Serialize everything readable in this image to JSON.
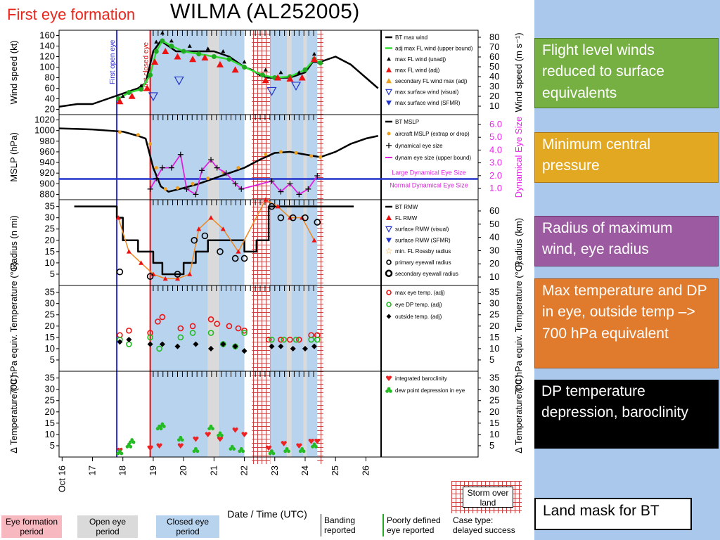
{
  "slide_title": "First eye formation",
  "plot_title": "WILMA (AL252005)",
  "side_boxes": [
    {
      "id": "fl-winds",
      "text": "Flight level winds reduced to surface equivalents",
      "color": "#76b043"
    },
    {
      "id": "min-pressure",
      "text": "Minimum central pressure",
      "color": "#e3a822"
    },
    {
      "id": "rmw",
      "text": "Radius of maximum wind, eye radius",
      "color": "#9c5aa0"
    },
    {
      "id": "max-temp",
      "text": "Max temperature and DP in eye, outside temp –> 700 hPa equivalent",
      "color": "#e07a2c"
    },
    {
      "id": "dp-depression",
      "text": "DP temperature depression, baroclinity",
      "color": "#000000"
    },
    {
      "id": "land-mask",
      "text": "Land mask for BT",
      "color": "#ffffff"
    }
  ],
  "colors": {
    "sidebar_blue": "#a9c8ec",
    "closed_eye": "#b8d3ee",
    "open_eye": "#dadada",
    "eye_formation": "#f7b8c0",
    "eye_line_open": "#2a2ad0",
    "eye_line_closed": "#e01010",
    "land_hatch": "#d04040"
  },
  "chart_data": {
    "type": "line",
    "x_axis": {
      "label": "Date / Time (UTC)",
      "ticks": [
        "Oct 16",
        "17",
        "18",
        "19",
        "20",
        "21",
        "22",
        "23",
        "24",
        "25",
        "26"
      ],
      "range_days": [
        15.9,
        26.5
      ]
    },
    "annotations": {
      "first_open_eye": {
        "label": "First open eye",
        "day": 17.8
      },
      "first_closed_eye": {
        "label": "First closed eye",
        "day": 18.9
      }
    },
    "periods": {
      "closed_eye": [
        [
          18.9,
          20.8
        ],
        [
          21.15,
          22.0
        ],
        [
          22.65,
          23.4
        ],
        [
          23.55,
          23.95
        ],
        [
          24.05,
          24.55
        ]
      ],
      "open_eye": [
        [
          20.8,
          21.15
        ],
        [
          23.4,
          23.55
        ],
        [
          23.95,
          24.05
        ]
      ],
      "land": [
        [
          22.25,
          22.85
        ],
        [
          24.4,
          24.6
        ]
      ]
    },
    "panels": [
      {
        "id": "wind",
        "ylabel": "Wind speed (kt)",
        "ylabel_right": "Wind speed (m s⁻¹)",
        "yticks": [
          20,
          40,
          60,
          80,
          100,
          120,
          140,
          160
        ],
        "yticks_right": [
          10,
          20,
          30,
          40,
          50,
          60,
          70,
          80
        ],
        "ylim": [
          10,
          170
        ],
        "legend": [
          "BT max wind",
          "adj max FL wind (upper bound)",
          "max FL wind (unadj)",
          "max FL wind (adj)",
          "secondary FL wind max (adj)",
          "max surface wind (visual)",
          "max surface wind (SFMR)"
        ],
        "series": [
          {
            "name": "BT max wind",
            "x": [
              15.9,
              16.5,
              17,
              17.5,
              18,
              18.25,
              18.5,
              18.75,
              19,
              19.25,
              19.5,
              19.75,
              20,
              20.5,
              21,
              21.5,
              22,
              22.25,
              22.5,
              22.75,
              23,
              23.5,
              24,
              24.25,
              24.5,
              25,
              25.5,
              26,
              26.4
            ],
            "y": [
              25,
              30,
              30,
              40,
              50,
              55,
              60,
              70,
              130,
              150,
              140,
              130,
              130,
              130,
              130,
              120,
              100,
              95,
              85,
              80,
              80,
              80,
              90,
              110,
              110,
              120,
              105,
              80,
              60
            ]
          },
          {
            "name": "adj max FL wind (upper bound)",
            "x": [
              17.85,
              18.2,
              18.6,
              18.9,
              19.1,
              19.3,
              19.6,
              20,
              20.5,
              21,
              21.5,
              22,
              22.6,
              23,
              23.5,
              24,
              24.3,
              24.5
            ],
            "y": [
              40,
              52,
              58,
              85,
              130,
              150,
              140,
              130,
              125,
              120,
              115,
              100,
              85,
              80,
              82,
              95,
              115,
              108
            ]
          },
          {
            "name": "max FL wind (unadj)",
            "x": [
              18,
              18.6,
              19.1,
              19.3,
              19.6,
              20.2,
              20.8,
              21.3,
              22,
              22.7,
              23.2,
              23.8,
              24.3
            ],
            "y": [
              45,
              65,
              148,
              165,
              150,
              140,
              135,
              130,
              110,
              95,
              90,
              90,
              125
            ]
          },
          {
            "name": "max FL wind (adj)",
            "x": [
              17.9,
              18.3,
              18.8,
              19.05,
              19.4,
              19.8,
              20.3,
              20.7,
              21.2,
              21.7,
              22.7,
              23.1,
              23.5,
              23.9,
              24.3
            ],
            "y": [
              35,
              45,
              60,
              110,
              130,
              120,
              115,
              118,
              105,
              95,
              75,
              80,
              78,
              80,
              115
            ]
          },
          {
            "name": "max surface wind (visual)",
            "x": [
              19.0,
              19.85,
              22.9,
              23.7
            ],
            "y": [
              45,
              75,
              55,
              65
            ]
          }
        ]
      },
      {
        "id": "mslp",
        "ylabel": "MSLP (hPa)",
        "ylabel_right": "Dynamical Eye Size",
        "yticks": [
          880,
          900,
          920,
          940,
          960,
          980,
          1000,
          1020
        ],
        "yticks_right": [
          "1.0",
          "2.0",
          "3.0",
          "4.0",
          "5.0",
          "6.0"
        ],
        "ylim": [
          870,
          1030
        ],
        "hline": {
          "value": 909
        },
        "hline_labels": [
          "Large Dynamical Eye Size",
          "Normal Dynamical Eye Size"
        ],
        "legend": [
          "BT MSLP",
          "aircraft MSLP (extrap or drop)",
          "dynamical eye size",
          "dynam eye size (upper bound)"
        ],
        "series": [
          {
            "name": "BT MSLP",
            "x": [
              15.9,
              16.5,
              17,
              17.5,
              18,
              18.5,
              18.75,
              19,
              19.25,
              19.5,
              20,
              20.5,
              21,
              21.5,
              22,
              22.5,
              23,
              23.5,
              24,
              24.5,
              25,
              25.5,
              26,
              26.4
            ],
            "y": [
              1004,
              1003,
              1002,
              1000,
              998,
              990,
              985,
              930,
              895,
              885,
              892,
              900,
              910,
              920,
              930,
              945,
              958,
              960,
              955,
              950,
              960,
              975,
              985,
              990
            ]
          },
          {
            "name": "aircraft MSLP (extrap or drop)",
            "x": [
              17.9,
              18.5,
              18.9,
              19.1,
              19.4,
              19.8,
              20.3,
              20.8,
              21.3,
              21.8,
              22.7,
              23.2,
              23.7,
              24.2,
              24.5
            ],
            "y": [
              997,
              992,
              975,
              930,
              890,
              892,
              900,
              910,
              922,
              930,
              955,
              960,
              958,
              952,
              950
            ]
          },
          {
            "name": "dyn eye size (upper bound)",
            "x": [
              18.9,
              19.1,
              19.3,
              19.6,
              19.9,
              20.1,
              20.4,
              20.6,
              20.9,
              21.1,
              21.4,
              21.7,
              21.9,
              22.9,
              23.2,
              23.5,
              23.8,
              24.1,
              24.4
            ],
            "y": [
              890,
              910,
              930,
              930,
              955,
              890,
              880,
              925,
              945,
              930,
              920,
              900,
              890,
              905,
              885,
              900,
              880,
              890,
              915
            ]
          }
        ]
      },
      {
        "id": "radius",
        "ylabel": "Radius (n mi)",
        "ylabel_right": "Radius (km)",
        "yticks": [
          5,
          10,
          15,
          20,
          25,
          30,
          35
        ],
        "yticks_right": [
          10,
          20,
          30,
          40,
          50,
          60
        ],
        "ylim": [
          0,
          38
        ],
        "legend": [
          "BT RMW",
          "FL RMW",
          "surface RMW (visual)",
          "surface RMW (SFMR)",
          "min. FL Rossby radius",
          "primary eyewall radius",
          "secondary eyewall radius"
        ],
        "series": [
          {
            "name": "BT RMW",
            "x": [
              16.4,
              17.5,
              17.8,
              18,
              18.5,
              19,
              19.3,
              19.6,
              20,
              20.4,
              20.8,
              21.2,
              21.6,
              22,
              22.4,
              22.8,
              23.2,
              23.6,
              24,
              24.4,
              24.8,
              25.2,
              25.6
            ],
            "y": [
              35,
              35,
              30,
              20,
              15,
              10,
              5,
              5,
              10,
              15,
              20,
              20,
              20,
              15,
              20,
              35,
              35,
              35,
              35,
              35,
              35,
              35,
              35
            ]
          },
          {
            "name": "FL RMW",
            "x": [
              17.85,
              18.2,
              18.6,
              19,
              19.4,
              19.8,
              20.2,
              20.5,
              20.9,
              21.3,
              21.8,
              22.7,
              23.1,
              23.5,
              23.9,
              24.3
            ],
            "y": [
              30,
              15,
              10,
              5,
              3,
              3,
              5,
              25,
              30,
              25,
              15,
              38,
              35,
              30,
              30,
              20
            ]
          },
          {
            "name": "primary eyewall radius",
            "x": [
              17.9,
              18.9,
              19.8,
              20.35,
              20.7,
              21.2,
              21.7,
              22.0,
              22.9,
              23.2,
              23.6,
              24.0,
              24.4
            ],
            "y": [
              6,
              4,
              5,
              20,
              22,
              15,
              12,
              12,
              35,
              30,
              30,
              30,
              28
            ]
          }
        ]
      },
      {
        "id": "temperature",
        "ylabel": "700 hPa equiv. Temperature (°C)",
        "ylabel_right": "700 hPa equiv. Temperature (°C)",
        "yticks": [
          5,
          10,
          15,
          20,
          25,
          30,
          35
        ],
        "yticks_right": [
          5,
          10,
          15,
          20,
          25,
          30,
          35
        ],
        "ylim": [
          0,
          38
        ],
        "legend": [
          "max eye temp. (adj)",
          "eye DP temp. (adj)",
          "outside temp. (adj)"
        ],
        "series": [
          {
            "name": "max eye temp. (adj)",
            "x": [
              17.9,
              18.2,
              18.9,
              19.15,
              19.3,
              19.9,
              20.3,
              20.9,
              21.1,
              21.5,
              21.8,
              22.0,
              22.8,
              23.2,
              23.5,
              23.8,
              24.2,
              24.4
            ],
            "y": [
              16,
              18,
              17,
              22,
              24,
              19,
              20,
              23,
              21,
              20,
              19,
              18,
              14,
              14,
              14,
              14,
              16,
              16
            ]
          },
          {
            "name": "eye DP temp. (adj)",
            "x": [
              17.9,
              18.2,
              18.9,
              19.2,
              19.9,
              20.3,
              20.9,
              21.3,
              21.7,
              22.0,
              22.9,
              23.3,
              23.7,
              24.2,
              24.4
            ],
            "y": [
              14,
              12,
              15,
              10,
              15,
              17,
              17,
              12,
              11,
              17,
              14,
              14,
              14,
              14,
              14
            ]
          },
          {
            "name": "outside temp. (adj)",
            "x": [
              17.9,
              18.2,
              18.9,
              19.3,
              19.8,
              20.4,
              20.9,
              21.3,
              21.7,
              22.0,
              22.9,
              23.2,
              23.6,
              24.0,
              24.3
            ],
            "y": [
              13,
              14,
              12,
              12,
              11,
              12,
              10,
              12,
              11,
              9,
              11,
              11,
              10,
              10,
              11
            ]
          }
        ]
      },
      {
        "id": "delta",
        "ylabel": "Δ Temperature (°C)",
        "ylabel_right": "Δ Temperature (°C)",
        "yticks": [
          5,
          10,
          15,
          20,
          25,
          30,
          35
        ],
        "yticks_right": [
          5,
          10,
          15,
          20,
          25,
          30,
          35
        ],
        "ylim": [
          0,
          38
        ],
        "legend": [
          "integrated baroclinity",
          "dew point depression in eye"
        ],
        "series": [
          {
            "name": "integrated baroclinity",
            "x": [
              17.9,
              18.9,
              19.2,
              19.9,
              20.4,
              20.8,
              21.2,
              21.7,
              22.0,
              22.8,
              23.3,
              23.8,
              24.2,
              24.4
            ],
            "y": [
              3,
              4,
              5,
              5,
              8,
              10,
              8,
              12,
              10,
              4,
              6,
              5,
              7,
              7
            ]
          },
          {
            "name": "dew point depression in eye",
            "x": [
              17.9,
              18.2,
              18.3,
              19.2,
              19.3,
              19.9,
              20.4,
              20.9,
              21.2,
              21.6,
              21.9,
              22.9,
              23.4,
              23.9,
              24.3
            ],
            "y": [
              2,
              5,
              7,
              13,
              14,
              8,
              3,
              13,
              10,
              4,
              3,
              2,
              3,
              3,
              5
            ]
          }
        ]
      }
    ]
  },
  "bottom_legend": {
    "eye_formation": "Eye formation period",
    "open_eye": "Open eye period",
    "closed_eye": "Closed eye period",
    "banding": "Banding reported",
    "poorly_defined": "Poorly defined eye reported",
    "case_type": "Case type: delayed success",
    "storm_over_land": "Storm over land"
  }
}
